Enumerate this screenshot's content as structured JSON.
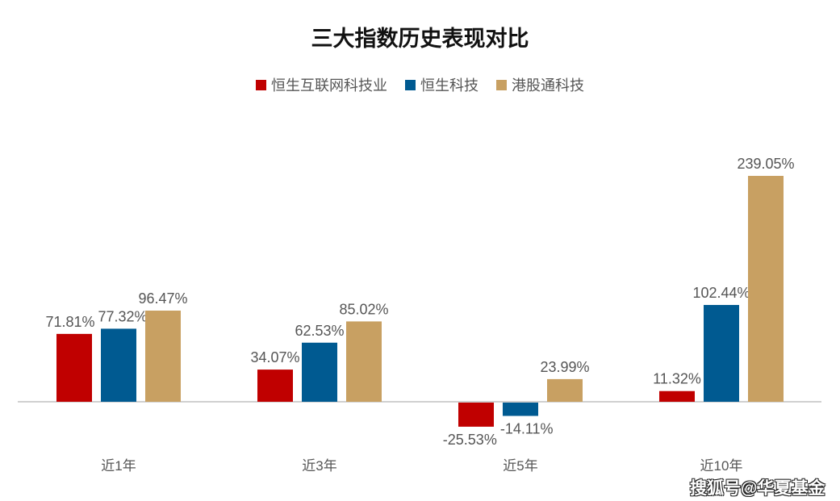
{
  "chart_data": {
    "type": "bar",
    "title": "三大指数历史表现对比",
    "categories": [
      "近1年",
      "近3年",
      "近5年",
      "近10年"
    ],
    "series": [
      {
        "name": "恒生互联网科技业",
        "color": "#C00000",
        "values": [
          71.81,
          34.07,
          -25.53,
          11.32
        ]
      },
      {
        "name": "恒生科技",
        "color": "#005A91",
        "values": [
          77.32,
          62.53,
          -14.11,
          102.44
        ]
      },
      {
        "name": "港股通科技",
        "color": "#C8A062",
        "values": [
          96.47,
          85.02,
          23.99,
          239.05
        ]
      }
    ],
    "value_suffix": "%",
    "xlabel": "",
    "ylabel": "",
    "grid": false,
    "legend_position": "top-center"
  },
  "watermark": "搜狐号@华夏基金"
}
